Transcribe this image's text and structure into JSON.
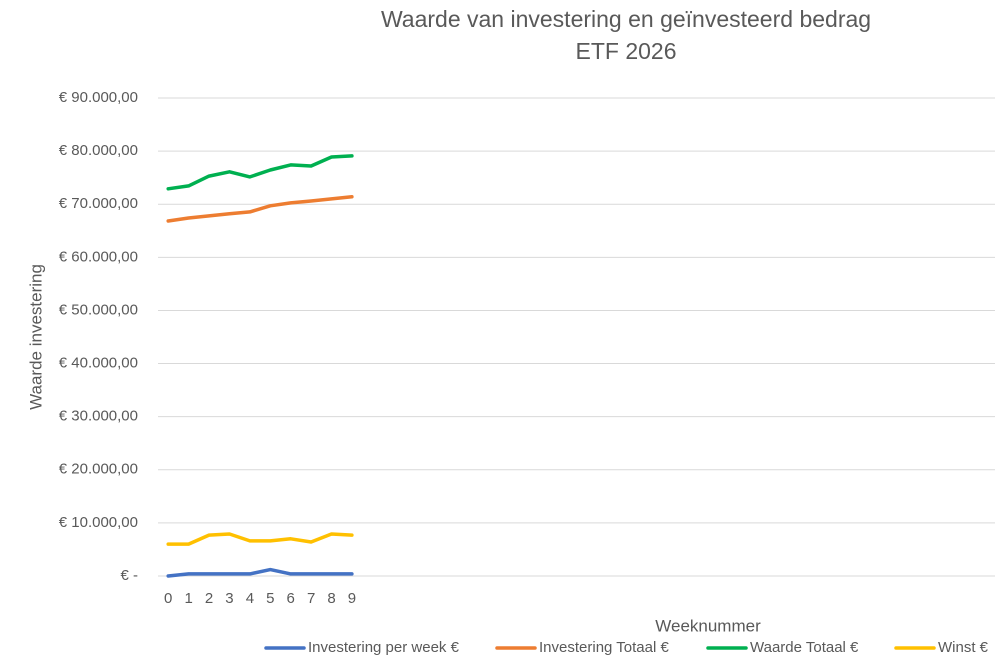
{
  "chart_data": {
    "type": "line",
    "title": "Waarde van investering en geïnvesteerd bedrag",
    "subtitle": "ETF 2026",
    "x_label": "Weeknummer",
    "y_label": "Waarde investering",
    "categories": [
      "0",
      "1",
      "2",
      "3",
      "4",
      "5",
      "6",
      "7",
      "8",
      "9",
      null,
      null,
      null,
      null,
      null,
      null,
      null,
      null,
      null,
      null,
      null,
      null,
      null,
      null,
      null,
      null,
      null,
      null,
      null,
      null,
      null,
      null,
      null,
      null,
      null,
      null,
      null,
      null,
      null,
      null,
      null
    ],
    "series": [
      {
        "name": "Investering per week €",
        "color": "#4472c4",
        "values": [
          0,
          400,
          400,
          400,
          400,
          1200,
          400,
          400,
          400,
          400,
          null,
          null,
          null,
          null,
          null,
          null,
          null,
          null,
          null,
          null,
          null,
          null,
          null,
          null,
          null,
          null,
          null,
          null,
          null,
          null,
          null,
          null,
          null,
          null,
          null,
          null,
          null,
          null,
          null,
          null,
          null
        ]
      },
      {
        "name": "Investering Totaal €",
        "color": "#ed7d31",
        "values": [
          66850,
          67400,
          67800,
          68200,
          68550,
          69700,
          70250,
          70600,
          71000,
          71400,
          null,
          null,
          null,
          null,
          null,
          null,
          null,
          null,
          null,
          null,
          null,
          null,
          null,
          null,
          null,
          null,
          null,
          null,
          null,
          null,
          null,
          null,
          null,
          null,
          null,
          null,
          null,
          null,
          null,
          null,
          null
        ]
      },
      {
        "name": "Waarde Totaal €",
        "color": "#00b050",
        "values": [
          72900,
          73450,
          75300,
          76100,
          75150,
          76450,
          77400,
          77200,
          78900,
          79100,
          null,
          null,
          null,
          null,
          null,
          null,
          null,
          null,
          null,
          null,
          null,
          null,
          null,
          null,
          null,
          null,
          null,
          null,
          null,
          null,
          null,
          null,
          null,
          null,
          null,
          null,
          null,
          null,
          null,
          null,
          null
        ]
      },
      {
        "name": "Winst €",
        "color": "#ffc000",
        "values": [
          6000,
          6000,
          7700,
          7900,
          6600,
          6600,
          7000,
          6400,
          7900,
          7700,
          null,
          null,
          null,
          null,
          null,
          null,
          null,
          null,
          null,
          null,
          null,
          null,
          null,
          null,
          null,
          null,
          null,
          null,
          null,
          null,
          null,
          null,
          null,
          null,
          null,
          null,
          null,
          null,
          null,
          null,
          null
        ]
      }
    ],
    "ylim": [
      0,
      90000
    ],
    "yticks": [
      {
        "value": 0,
        "label": "€ -"
      },
      {
        "value": 10000,
        "label": "€ 10.000,00"
      },
      {
        "value": 20000,
        "label": "€ 20.000,00"
      },
      {
        "value": 30000,
        "label": "€ 30.000,00"
      },
      {
        "value": 40000,
        "label": "€ 40.000,00"
      },
      {
        "value": 50000,
        "label": "€ 50.000,00"
      },
      {
        "value": 60000,
        "label": "€ 60.000,00"
      },
      {
        "value": 70000,
        "label": "€ 70.000,00"
      },
      {
        "value": 80000,
        "label": "€ 80.000,00"
      },
      {
        "value": 90000,
        "label": "€ 90.000,00"
      }
    ],
    "grid": true,
    "legend": "bottom"
  }
}
